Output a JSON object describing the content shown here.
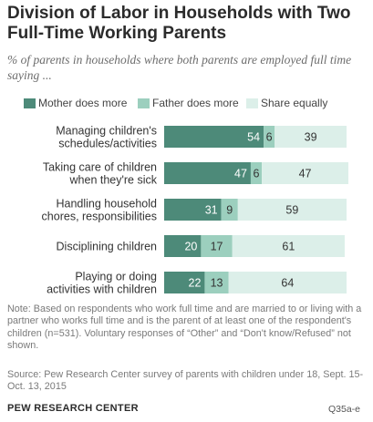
{
  "chart_data": {
    "type": "bar",
    "stacked": "horizontal",
    "title": "Division of Labor in Households with Two Full-Time Working Parents",
    "subtitle": "% of parents in households where both parents are employed full time saying ...",
    "categories": [
      [
        "Managing children's",
        "schedules/activities"
      ],
      [
        "Taking care of children",
        "when they're sick"
      ],
      [
        "Handling household",
        "chores, responsibilities"
      ],
      [
        "Disciplining children"
      ],
      [
        "Playing or doing",
        "activities with children"
      ]
    ],
    "series": [
      {
        "name": "Mother does more",
        "values": [
          54,
          47,
          31,
          20,
          22
        ],
        "color": "#4d8a79"
      },
      {
        "name": "Father does more",
        "values": [
          6,
          6,
          9,
          17,
          13
        ],
        "color": "#9ccfbe"
      },
      {
        "name": "Share equally",
        "values": [
          39,
          47,
          59,
          61,
          64
        ],
        "color": "#dcefe9"
      }
    ],
    "xlim": [
      0,
      100
    ],
    "legend_position": "top",
    "grid": false
  },
  "note": "Note: Based on respondents who work full time and are married to or living with a partner who works full time and is the parent of at least one of the respondent's children (n=531). Voluntary responses of “Other” and “Don't know/Refused” not shown.",
  "source": "Source: Pew Research Center survey of parents with children under 18, Sept. 15-Oct. 13, 2015",
  "brand": "PEW RESEARCH CENTER",
  "code": "Q35a-e"
}
